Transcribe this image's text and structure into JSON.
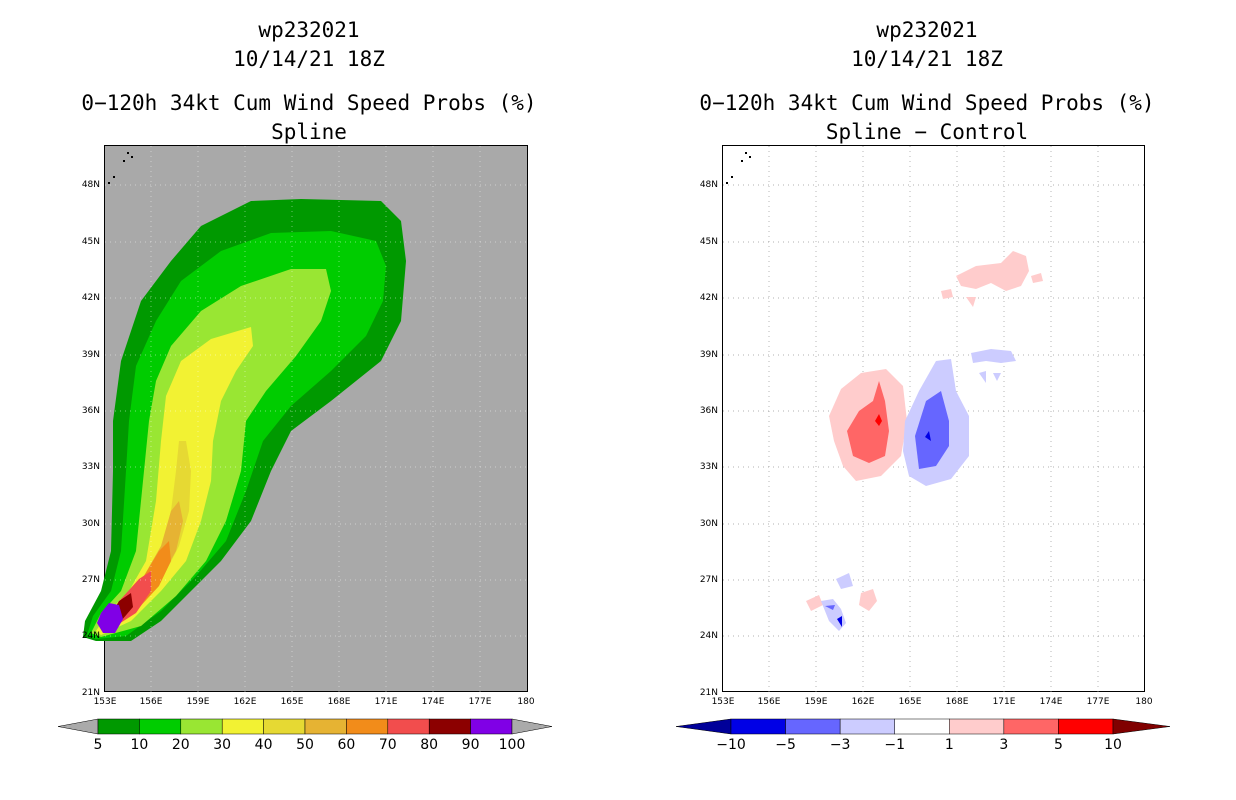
{
  "left_panel": {
    "storm_id": "wp232021",
    "datetime": "10/14/21 18Z",
    "product": "0−120h 34kt Cum Wind Speed Probs (%)",
    "subtitle": "Spline",
    "lon_ticks": [
      "153E",
      "156E",
      "159E",
      "162E",
      "165E",
      "168E",
      "171E",
      "174E",
      "177E",
      "180"
    ],
    "lat_ticks": [
      "48N",
      "45N",
      "42N",
      "39N",
      "36N",
      "33N",
      "30N",
      "27N",
      "24N",
      "21N"
    ],
    "colorbar": {
      "labels": [
        "5",
        "10",
        "20",
        "30",
        "40",
        "50",
        "60",
        "70",
        "80",
        "90",
        "100"
      ],
      "colors": [
        "#009900",
        "#00cc00",
        "#99e633",
        "#f2f233",
        "#e6d933",
        "#e6b333",
        "#f28c1a",
        "#f24d4d",
        "#8c0000",
        "#8000e6"
      ],
      "end_color": "#aaaaaa"
    }
  },
  "right_panel": {
    "storm_id": "wp232021",
    "datetime": "10/14/21 18Z",
    "product": "0−120h 34kt Cum Wind Speed Probs (%)",
    "subtitle": "Spline − Control",
    "lon_ticks": [
      "153E",
      "156E",
      "159E",
      "162E",
      "165E",
      "168E",
      "171E",
      "174E",
      "177E",
      "180"
    ],
    "lat_ticks": [
      "48N",
      "45N",
      "42N",
      "39N",
      "36N",
      "33N",
      "30N",
      "27N",
      "24N",
      "21N"
    ],
    "colorbar": {
      "labels": [
        "−10",
        "−5",
        "−3",
        "−1",
        "1",
        "3",
        "5",
        "10"
      ],
      "colors": [
        "#0000e6",
        "#6666ff",
        "#ccccff",
        "#ffffff",
        "#ffcccc",
        "#ff6666",
        "#ff0000"
      ],
      "left_end_color": "#000099",
      "right_end_color": "#800000"
    }
  }
}
